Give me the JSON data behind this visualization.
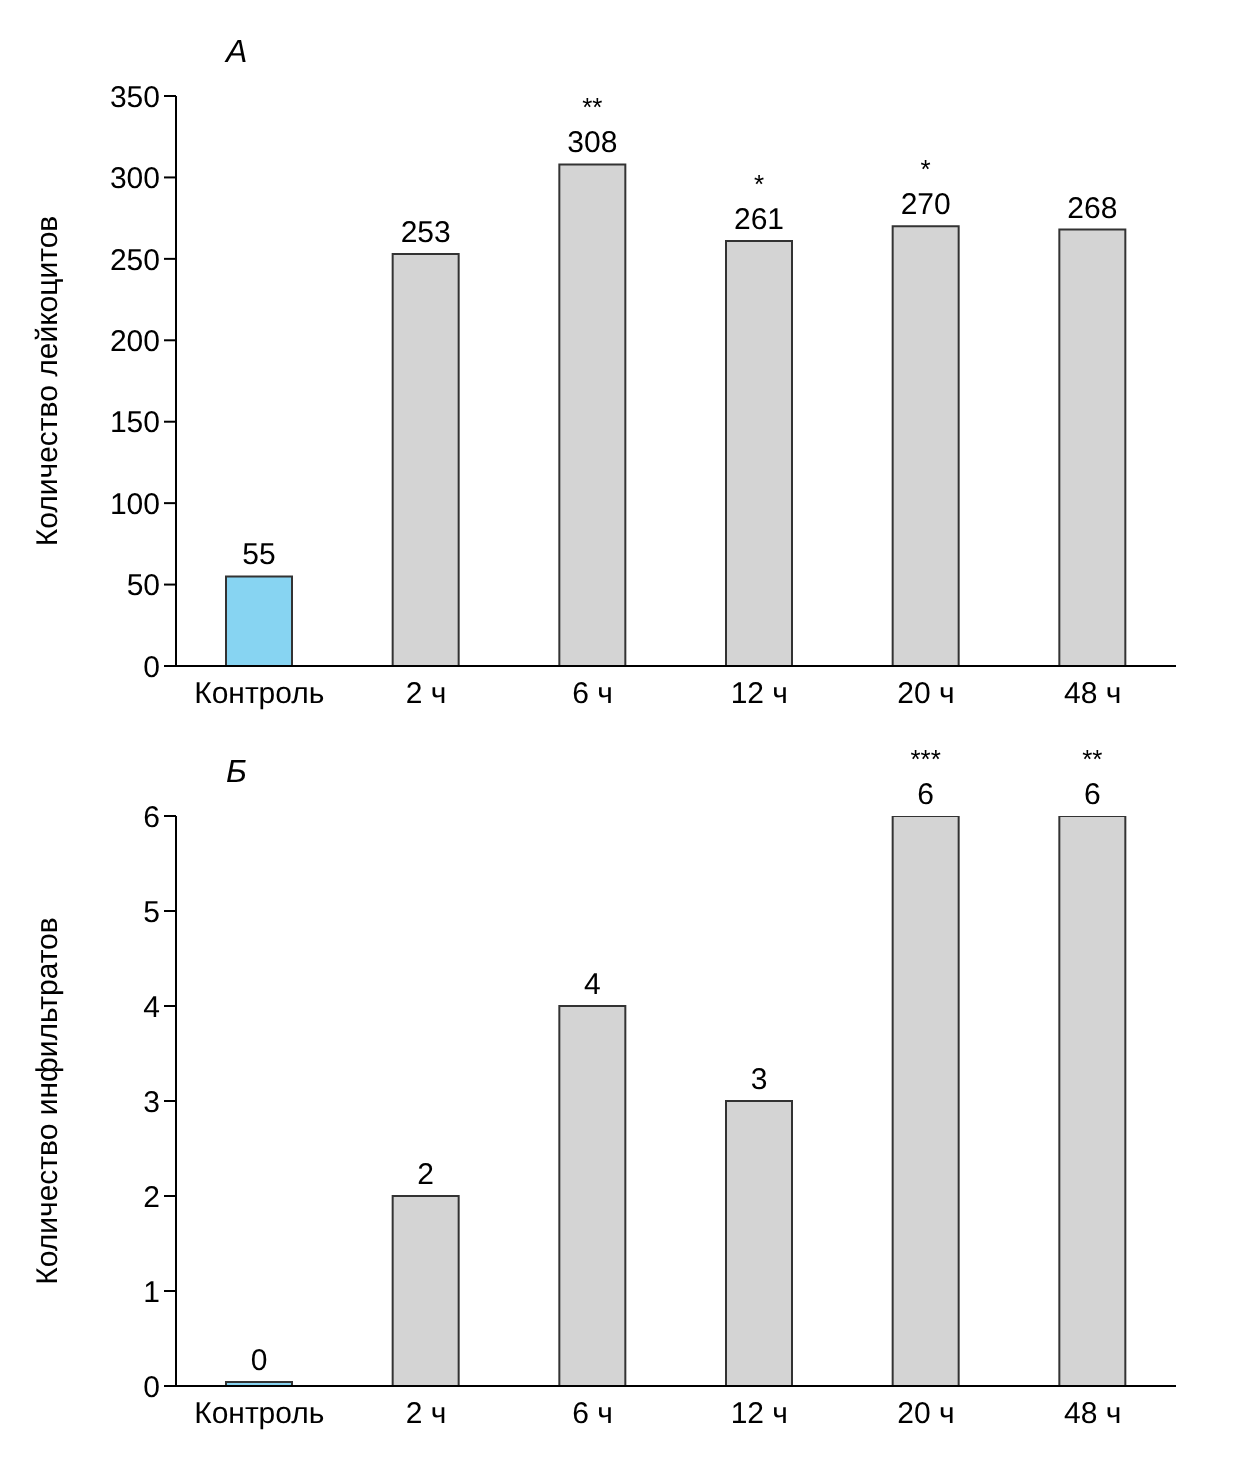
{
  "chart_data": [
    {
      "type": "bar",
      "title": "А",
      "ylabel": "Количество лейкоцитов",
      "categories": [
        "Контроль",
        "2 ч",
        "6 ч",
        "12 ч",
        "20 ч",
        "48 ч"
      ],
      "values": [
        55,
        253,
        308,
        261,
        270,
        268
      ],
      "colors": [
        "#87d4f2",
        "#d4d4d4",
        "#d4d4d4",
        "#d4d4d4",
        "#d4d4d4",
        "#d4d4d4"
      ],
      "ylim": [
        0,
        350
      ],
      "yticks": [
        0,
        50,
        100,
        150,
        200,
        250,
        300,
        350
      ],
      "grid": false,
      "data_labels": true,
      "annotations": [
        {
          "text": "**",
          "x": "6 ч",
          "y": 308
        },
        {
          "text": "*",
          "x": "12 ч",
          "y": 261
        },
        {
          "text": "*",
          "x": "20 ч",
          "y": 270
        }
      ]
    },
    {
      "type": "bar",
      "title": "Б",
      "ylabel": "Количество инфильтратов",
      "categories": [
        "Контроль",
        "2 ч",
        "6 ч",
        "12 ч",
        "20 ч",
        "48 ч"
      ],
      "values": [
        0,
        2,
        4,
        3,
        6,
        6
      ],
      "colors": [
        "#87d4f2",
        "#d4d4d4",
        "#d4d4d4",
        "#d4d4d4",
        "#d4d4d4",
        "#d4d4d4"
      ],
      "ylim": [
        0,
        6
      ],
      "yticks": [
        0,
        1,
        2,
        3,
        4,
        5,
        6
      ],
      "grid": false,
      "data_labels": true,
      "annotations": [
        {
          "text": "***",
          "x": "20 ч",
          "y": 6
        },
        {
          "text": "**",
          "x": "48 ч",
          "y": 6
        }
      ]
    }
  ]
}
